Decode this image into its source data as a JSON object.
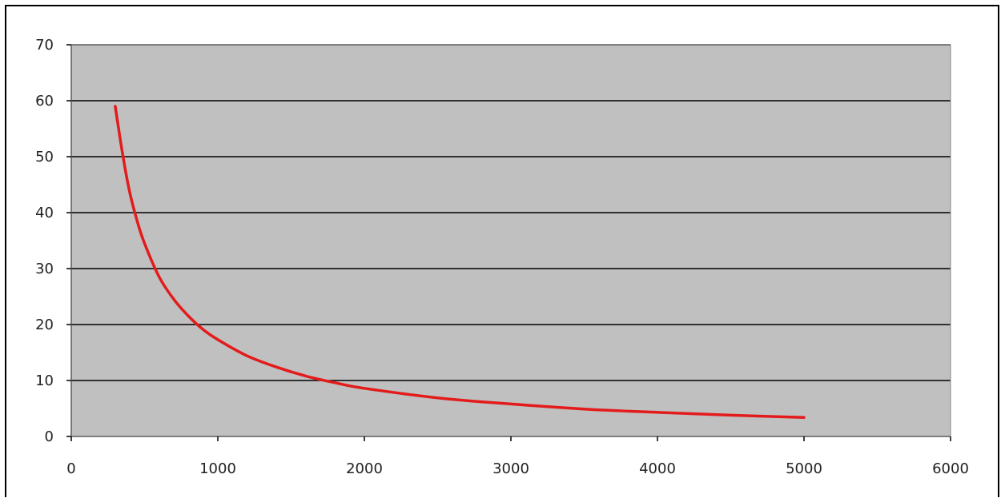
{
  "chart_data": {
    "type": "line",
    "title": "",
    "xlabel": "",
    "ylabel": "",
    "xlim": [
      0,
      6000
    ],
    "ylim": [
      0,
      70
    ],
    "x_ticks": [
      0,
      1000,
      2000,
      3000,
      4000,
      5000,
      6000
    ],
    "y_ticks": [
      0,
      10,
      20,
      30,
      40,
      50,
      60,
      70
    ],
    "x_tick_labels": [
      "0",
      "1000",
      "2000",
      "3000",
      "4000",
      "5000",
      "6000"
    ],
    "y_tick_labels": [
      "0",
      "10",
      "20",
      "30",
      "40",
      "50",
      "60",
      "70"
    ],
    "grid": true,
    "legend": "none",
    "plot_background": "#c0c0c0",
    "series": [
      {
        "color": "#e31b1b",
        "x": [
          300,
          350,
          400,
          450,
          500,
          600,
          700,
          800,
          900,
          1000,
          1200,
          1400,
          1600,
          1800,
          2000,
          2500,
          3000,
          3500,
          4000,
          4500,
          5000
        ],
        "y": [
          59.0,
          50.5,
          43.5,
          38.5,
          34.5,
          28.5,
          24.5,
          21.5,
          19.1,
          17.3,
          14.4,
          12.4,
          10.8,
          9.6,
          8.6,
          6.9,
          5.8,
          4.9,
          4.3,
          3.8,
          3.4
        ]
      }
    ]
  }
}
